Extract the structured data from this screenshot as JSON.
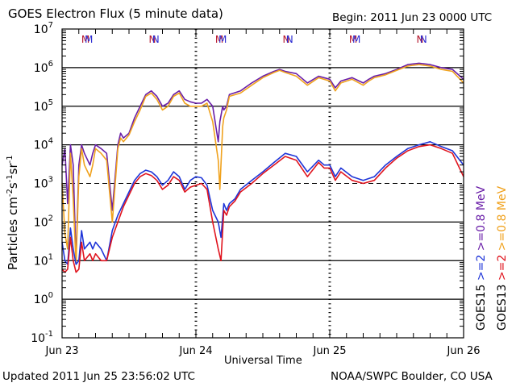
{
  "header": {
    "title": "GOES Electron Flux (5 minute data)",
    "begin": "Begin: 2011 Jun 23 0000 UTC"
  },
  "footer": {
    "updated": "Updated 2011 Jun 25 23:56:02 UTC",
    "credit": "NOAA/SWPC Boulder, CO USA"
  },
  "colors": {
    "goes15_2mev": "#1f35d8",
    "goes13_2mev": "#e0141e",
    "goes15_08mev": "#6a1fa8",
    "goes13_08mev": "#f0a21e",
    "markers_m": "#b4142a",
    "markers_n": "#2a2ad2"
  },
  "chart_data": {
    "type": "line",
    "title": "GOES Electron Flux (5 minute data)",
    "xlabel": "Universal Time",
    "ylabel": "Particles cm-2s-1sr-1",
    "ylabel_parts": {
      "main": "Particles cm",
      "sup1": "-2",
      "mid1": "s",
      "sup2": "-1",
      "mid2": "sr",
      "sup3": "-1"
    },
    "y_scale": "log",
    "ylim": [
      0.1,
      10000000
    ],
    "y_ticks": [
      {
        "exp": -1,
        "base": "10",
        "sup": "-1"
      },
      {
        "exp": 0,
        "base": "10",
        "sup": "0"
      },
      {
        "exp": 1,
        "base": "10",
        "sup": "1"
      },
      {
        "exp": 2,
        "base": "10",
        "sup": "2"
      },
      {
        "exp": 3,
        "base": "10",
        "sup": "3"
      },
      {
        "exp": 4,
        "base": "10",
        "sup": "4"
      },
      {
        "exp": 5,
        "base": "10",
        "sup": "5"
      },
      {
        "exp": 6,
        "base": "10",
        "sup": "6"
      },
      {
        "exp": 7,
        "base": "10",
        "sup": "7"
      }
    ],
    "xlim": [
      0,
      72
    ],
    "x_ticks": [
      {
        "t": 0,
        "label": "Jun 23"
      },
      {
        "t": 24,
        "label": "Jun 24"
      },
      {
        "t": 48,
        "label": "Jun 25"
      },
      {
        "t": 72,
        "label": "Jun 26"
      }
    ],
    "threshold_exp": 3,
    "grid": true,
    "right_labels": [
      {
        "text": "GOES15",
        "color": "#000000"
      },
      {
        "text": ">=2",
        "color": "#1f35d8"
      },
      {
        "text": ">=0.8 MeV",
        "color": "#6a1fa8"
      },
      {
        "text": "GOES13",
        "color": "#000000"
      },
      {
        "text": ">=2",
        "color": "#e0141e"
      },
      {
        "text": ">=0.8 MeV",
        "color": "#f0a21e"
      }
    ],
    "markers": [
      {
        "t": 4.2,
        "label": "M",
        "sat": "13"
      },
      {
        "t": 4.8,
        "label": "M",
        "sat": "15"
      },
      {
        "t": 16.2,
        "label": "N",
        "sat": "13"
      },
      {
        "t": 16.8,
        "label": "N",
        "sat": "15"
      },
      {
        "t": 28.2,
        "label": "M",
        "sat": "13"
      },
      {
        "t": 28.8,
        "label": "M",
        "sat": "15"
      },
      {
        "t": 40.2,
        "label": "N",
        "sat": "13"
      },
      {
        "t": 40.8,
        "label": "N",
        "sat": "15"
      },
      {
        "t": 52.2,
        "label": "M",
        "sat": "13"
      },
      {
        "t": 52.8,
        "label": "M",
        "sat": "15"
      },
      {
        "t": 64.2,
        "label": "N",
        "sat": "13"
      },
      {
        "t": 64.8,
        "label": "N",
        "sat": "15"
      }
    ],
    "series": [
      {
        "name": "GOES15 >=0.8 MeV",
        "color": "#6a1fa8",
        "points": [
          [
            0,
            3000
          ],
          [
            0.5,
            8000
          ],
          [
            1,
            300
          ],
          [
            1.5,
            10000
          ],
          [
            2,
            3000
          ],
          [
            2.5,
            10
          ],
          [
            3,
            3000
          ],
          [
            3.5,
            10000
          ],
          [
            4,
            6000
          ],
          [
            5,
            3000
          ],
          [
            5.5,
            6000
          ],
          [
            6,
            10000
          ],
          [
            7,
            8000
          ],
          [
            8,
            6000
          ],
          [
            9,
            200
          ],
          [
            10,
            10000
          ],
          [
            10.5,
            20000
          ],
          [
            11,
            15000
          ],
          [
            12,
            20000
          ],
          [
            13,
            50000
          ],
          [
            14,
            100000
          ],
          [
            15,
            200000
          ],
          [
            16,
            250000
          ],
          [
            17,
            180000
          ],
          [
            18,
            100000
          ],
          [
            19,
            120000
          ],
          [
            20,
            200000
          ],
          [
            21,
            250000
          ],
          [
            22,
            150000
          ],
          [
            23,
            130000
          ],
          [
            24,
            120000
          ],
          [
            25,
            120000
          ],
          [
            26,
            150000
          ],
          [
            27,
            100000
          ],
          [
            28,
            12000
          ],
          [
            28.3,
            40000
          ],
          [
            28.8,
            100000
          ],
          [
            29,
            80000
          ],
          [
            29.5,
            100000
          ],
          [
            30,
            200000
          ],
          [
            32,
            250000
          ],
          [
            34,
            400000
          ],
          [
            36,
            600000
          ],
          [
            38,
            800000
          ],
          [
            39,
            900000
          ],
          [
            40,
            800000
          ],
          [
            42,
            700000
          ],
          [
            44,
            400000
          ],
          [
            46,
            600000
          ],
          [
            48,
            500000
          ],
          [
            49,
            300000
          ],
          [
            50,
            450000
          ],
          [
            52,
            550000
          ],
          [
            54,
            400000
          ],
          [
            55,
            500000
          ],
          [
            56,
            600000
          ],
          [
            58,
            700000
          ],
          [
            60,
            900000
          ],
          [
            62,
            1200000
          ],
          [
            64,
            1300000
          ],
          [
            66,
            1200000
          ],
          [
            68,
            1000000
          ],
          [
            70,
            900000
          ],
          [
            72,
            500000
          ]
        ]
      },
      {
        "name": "GOES13 >=0.8 MeV",
        "color": "#f0a21e",
        "points": [
          [
            0,
            1000
          ],
          [
            0.5,
            50
          ],
          [
            1,
            20
          ],
          [
            1.5,
            6000
          ],
          [
            2,
            400
          ],
          [
            2.5,
            8
          ],
          [
            3,
            1500
          ],
          [
            3.5,
            8000
          ],
          [
            4,
            3000
          ],
          [
            5,
            1500
          ],
          [
            5.5,
            3000
          ],
          [
            6,
            8000
          ],
          [
            7,
            6000
          ],
          [
            8,
            4000
          ],
          [
            9,
            100
          ],
          [
            10,
            8000
          ],
          [
            10.5,
            15000
          ],
          [
            11,
            12000
          ],
          [
            12,
            18000
          ],
          [
            13,
            40000
          ],
          [
            14,
            80000
          ],
          [
            15,
            180000
          ],
          [
            16,
            220000
          ],
          [
            17,
            150000
          ],
          [
            18,
            80000
          ],
          [
            19,
            100000
          ],
          [
            20,
            180000
          ],
          [
            21,
            220000
          ],
          [
            22,
            120000
          ],
          [
            23,
            100000
          ],
          [
            24,
            100000
          ],
          [
            25,
            100000
          ],
          [
            26,
            120000
          ],
          [
            27,
            40000
          ],
          [
            28,
            4000
          ],
          [
            28.3,
            700
          ],
          [
            28.8,
            30000
          ],
          [
            29,
            50000
          ],
          [
            29.5,
            80000
          ],
          [
            30,
            180000
          ],
          [
            32,
            220000
          ],
          [
            34,
            350000
          ],
          [
            36,
            550000
          ],
          [
            38,
            750000
          ],
          [
            39,
            850000
          ],
          [
            40,
            750000
          ],
          [
            42,
            600000
          ],
          [
            44,
            350000
          ],
          [
            46,
            550000
          ],
          [
            48,
            450000
          ],
          [
            49,
            250000
          ],
          [
            50,
            400000
          ],
          [
            52,
            500000
          ],
          [
            54,
            350000
          ],
          [
            55,
            450000
          ],
          [
            56,
            550000
          ],
          [
            58,
            650000
          ],
          [
            60,
            850000
          ],
          [
            62,
            1100000
          ],
          [
            64,
            1200000
          ],
          [
            66,
            1100000
          ],
          [
            68,
            900000
          ],
          [
            70,
            800000
          ],
          [
            72,
            400000
          ]
        ]
      },
      {
        "name": "GOES15 >=2 MeV",
        "color": "#1f35d8",
        "points": [
          [
            0,
            30
          ],
          [
            0.5,
            10
          ],
          [
            1,
            8
          ],
          [
            1.5,
            70
          ],
          [
            2,
            20
          ],
          [
            2.5,
            8
          ],
          [
            3,
            10
          ],
          [
            3.5,
            60
          ],
          [
            4,
            20
          ],
          [
            5,
            30
          ],
          [
            5.5,
            20
          ],
          [
            6,
            30
          ],
          [
            7,
            20
          ],
          [
            8,
            10
          ],
          [
            9,
            60
          ],
          [
            10,
            150
          ],
          [
            11,
            300
          ],
          [
            12,
            600
          ],
          [
            13,
            1200
          ],
          [
            14,
            1800
          ],
          [
            15,
            2200
          ],
          [
            16,
            2000
          ],
          [
            17,
            1500
          ],
          [
            18,
            900
          ],
          [
            19,
            1200
          ],
          [
            20,
            2000
          ],
          [
            21,
            1500
          ],
          [
            22,
            700
          ],
          [
            23,
            1200
          ],
          [
            24,
            1500
          ],
          [
            25,
            1400
          ],
          [
            26,
            900
          ],
          [
            27,
            200
          ],
          [
            28,
            100
          ],
          [
            28.5,
            40
          ],
          [
            29,
            300
          ],
          [
            29.5,
            200
          ],
          [
            30,
            300
          ],
          [
            31,
            400
          ],
          [
            32,
            700
          ],
          [
            34,
            1200
          ],
          [
            36,
            2000
          ],
          [
            38,
            3500
          ],
          [
            40,
            6000
          ],
          [
            42,
            5000
          ],
          [
            44,
            2000
          ],
          [
            46,
            4000
          ],
          [
            47,
            3000
          ],
          [
            48,
            3000
          ],
          [
            49,
            1500
          ],
          [
            50,
            2500
          ],
          [
            52,
            1500
          ],
          [
            54,
            1200
          ],
          [
            56,
            1500
          ],
          [
            58,
            3000
          ],
          [
            60,
            5000
          ],
          [
            62,
            8000
          ],
          [
            64,
            10000
          ],
          [
            66,
            12000
          ],
          [
            68,
            9000
          ],
          [
            70,
            7000
          ],
          [
            72,
            3000
          ]
        ]
      },
      {
        "name": "GOES13 >=2 MeV",
        "color": "#e0141e",
        "points": [
          [
            0,
            6
          ],
          [
            0.5,
            5
          ],
          [
            1,
            6
          ],
          [
            1.5,
            40
          ],
          [
            2,
            10
          ],
          [
            2.5,
            5
          ],
          [
            3,
            6
          ],
          [
            3.5,
            30
          ],
          [
            4,
            10
          ],
          [
            5,
            15
          ],
          [
            5.5,
            10
          ],
          [
            6,
            15
          ],
          [
            7,
            10
          ],
          [
            8,
            10
          ],
          [
            9,
            40
          ],
          [
            10,
            100
          ],
          [
            11,
            250
          ],
          [
            12,
            500
          ],
          [
            13,
            1000
          ],
          [
            14,
            1500
          ],
          [
            15,
            1800
          ],
          [
            16,
            1600
          ],
          [
            17,
            1200
          ],
          [
            18,
            700
          ],
          [
            19,
            900
          ],
          [
            20,
            1500
          ],
          [
            21,
            1200
          ],
          [
            22,
            600
          ],
          [
            23,
            800
          ],
          [
            24,
            900
          ],
          [
            25,
            1000
          ],
          [
            26,
            700
          ],
          [
            27,
            100
          ],
          [
            28,
            20
          ],
          [
            28.5,
            10
          ],
          [
            29,
            200
          ],
          [
            29.5,
            150
          ],
          [
            30,
            250
          ],
          [
            31,
            350
          ],
          [
            32,
            600
          ],
          [
            34,
            1000
          ],
          [
            36,
            1800
          ],
          [
            38,
            3000
          ],
          [
            40,
            5000
          ],
          [
            42,
            4000
          ],
          [
            44,
            1500
          ],
          [
            46,
            3500
          ],
          [
            47,
            2500
          ],
          [
            48,
            2500
          ],
          [
            49,
            1200
          ],
          [
            50,
            2000
          ],
          [
            52,
            1200
          ],
          [
            54,
            1000
          ],
          [
            56,
            1200
          ],
          [
            58,
            2500
          ],
          [
            60,
            4500
          ],
          [
            62,
            7000
          ],
          [
            64,
            9000
          ],
          [
            66,
            10000
          ],
          [
            68,
            8000
          ],
          [
            70,
            6000
          ],
          [
            72,
            1500
          ]
        ]
      }
    ],
    "annotations": []
  }
}
